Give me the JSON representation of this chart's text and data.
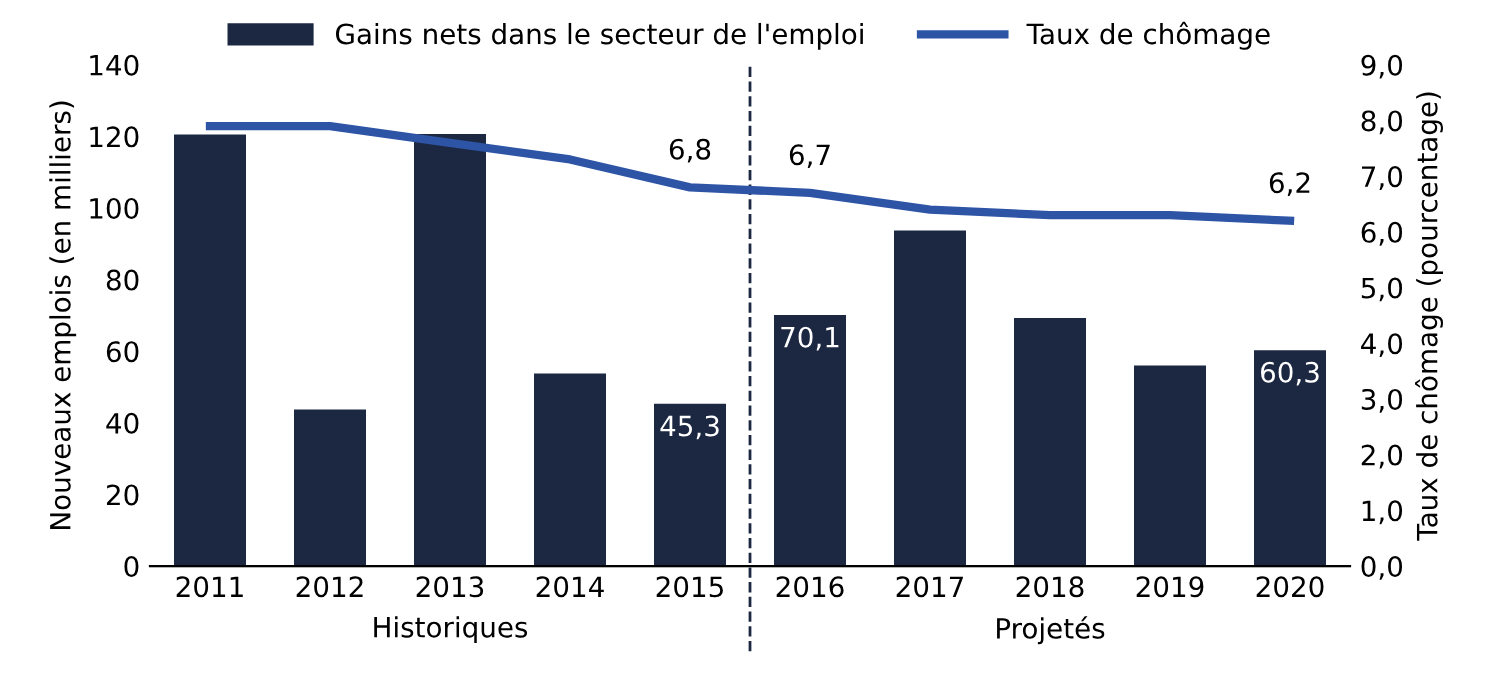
{
  "chart_data": {
    "type": "bar",
    "categories": [
      "2011",
      "2012",
      "2013",
      "2014",
      "2015",
      "2016",
      "2017",
      "2018",
      "2019",
      "2020"
    ],
    "series": [
      {
        "name": "Gains nets dans le secteur de l'emploi",
        "color": "#1c2841",
        "values": [
          120.5,
          43.7,
          120.7,
          53.8,
          45.3,
          70.1,
          93.7,
          69.3,
          56.0,
          60.3
        ],
        "value_labels": [
          null,
          null,
          null,
          null,
          "45,3",
          "70,1",
          null,
          null,
          null,
          "60,3"
        ]
      },
      {
        "name": "Taux de chômage",
        "type": "line",
        "axis": "y2",
        "color": "#2e54a6",
        "values": [
          7.9,
          7.9,
          7.6,
          7.3,
          6.8,
          6.7,
          6.4,
          6.3,
          6.3,
          6.2
        ],
        "value_labels": [
          null,
          null,
          null,
          null,
          "6,8",
          "6,7",
          null,
          null,
          null,
          "6,2"
        ]
      }
    ],
    "ylabel": "Nouveaux emplois (en milliers)",
    "y2label": "Taux de chômage (pourcentage)",
    "ylim": [
      0,
      140
    ],
    "yticks": [
      0,
      20,
      40,
      60,
      80,
      100,
      120,
      140
    ],
    "y2lim": [
      0,
      9
    ],
    "y2ticks": [
      {
        "value": 0,
        "label": "0,0"
      },
      {
        "value": 1,
        "label": "1,0"
      },
      {
        "value": 2,
        "label": "2,0"
      },
      {
        "value": 3,
        "label": "3,0"
      },
      {
        "value": 4,
        "label": "4,0"
      },
      {
        "value": 5,
        "label": "5,0"
      },
      {
        "value": 6,
        "label": "6,0"
      },
      {
        "value": 7,
        "label": "7,0"
      },
      {
        "value": 8,
        "label": "8,0"
      },
      {
        "value": 9,
        "label": "9,0"
      }
    ],
    "annotations": [
      "Historiques",
      "Projetés"
    ],
    "legend": "top",
    "grid": false,
    "marker": "none",
    "line_style": "solid"
  }
}
